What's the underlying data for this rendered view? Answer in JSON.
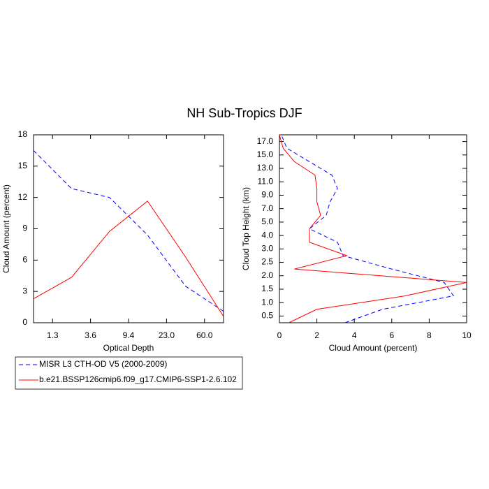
{
  "title": "NH Sub-Tropics DJF",
  "chart_data": [
    {
      "type": "line",
      "xlabel": "Optical Depth",
      "ylabel": "Cloud Amount (percent)",
      "x": [
        0,
        1,
        2,
        3,
        4,
        5
      ],
      "xlim": [
        0,
        5
      ],
      "xticks": [
        {
          "value": 0.5,
          "label": "1.3"
        },
        {
          "value": 1.5,
          "label": "3.6"
        },
        {
          "value": 2.5,
          "label": "9.4"
        },
        {
          "value": 3.5,
          "label": "23.0"
        },
        {
          "value": 4.5,
          "label": "60.0"
        }
      ],
      "ylim": [
        0,
        18
      ],
      "yticks": [
        0,
        3,
        6,
        9,
        12,
        15,
        18
      ],
      "series": [
        {
          "name": "MISR L3 CTH-OD V5 (2000-2009)",
          "color": "#0000ff",
          "dashed": true,
          "values": [
            16.5,
            12.85,
            12.0,
            8.4,
            3.5,
            1.1
          ]
        },
        {
          "name": "b.e21.BSSP126cmip6.f09_g17.CMIP6-SSP1-2.6.102",
          "color": "#ff0000",
          "dashed": false,
          "values": [
            2.3,
            4.35,
            8.75,
            11.65,
            6.3,
            0.6
          ]
        }
      ]
    },
    {
      "type": "line",
      "orientation": "horizontal",
      "xlabel": "Cloud Amount (percent)",
      "ylabel": "Cloud Top Height (km)",
      "y": [
        -0.5,
        0.5,
        1.5,
        2.5,
        3.5,
        4.5,
        5.5,
        6.5,
        7.5,
        8.5,
        9.5,
        10.5,
        11.5,
        12.5,
        13.5
      ],
      "ylim": [
        -0.5,
        13.5
      ],
      "yticks": [
        {
          "value": 0,
          "label": "0.5"
        },
        {
          "value": 1,
          "label": "1.0"
        },
        {
          "value": 2,
          "label": "1.5"
        },
        {
          "value": 3,
          "label": "2.0"
        },
        {
          "value": 4,
          "label": "2.5"
        },
        {
          "value": 5,
          "label": "3.0"
        },
        {
          "value": 6,
          "label": "4.0"
        },
        {
          "value": 7,
          "label": "5.0"
        },
        {
          "value": 8,
          "label": "7.0"
        },
        {
          "value": 9,
          "label": "9.0"
        },
        {
          "value": 10,
          "label": "11.0"
        },
        {
          "value": 11,
          "label": "13.0"
        },
        {
          "value": 12,
          "label": "15.0"
        },
        {
          "value": 13,
          "label": "17.0"
        }
      ],
      "xlim": [
        0,
        10
      ],
      "xticks": [
        0,
        2,
        4,
        6,
        8,
        10
      ],
      "series": [
        {
          "color": "#0000ff",
          "dashed": true,
          "values": [
            3.5,
            5.5,
            9.3,
            8.8,
            6.0,
            3.4,
            3.1,
            1.6,
            2.5,
            2.7,
            3.1,
            2.8,
            1.6,
            0.4,
            0.1
          ]
        },
        {
          "color": "#ff0000",
          "dashed": false,
          "values": [
            0.5,
            2.0,
            6.7,
            10.0,
            0.8,
            3.6,
            1.6,
            1.6,
            2.2,
            2.0,
            2.0,
            1.9,
            0.8,
            0.2,
            0.0
          ]
        }
      ]
    }
  ]
}
